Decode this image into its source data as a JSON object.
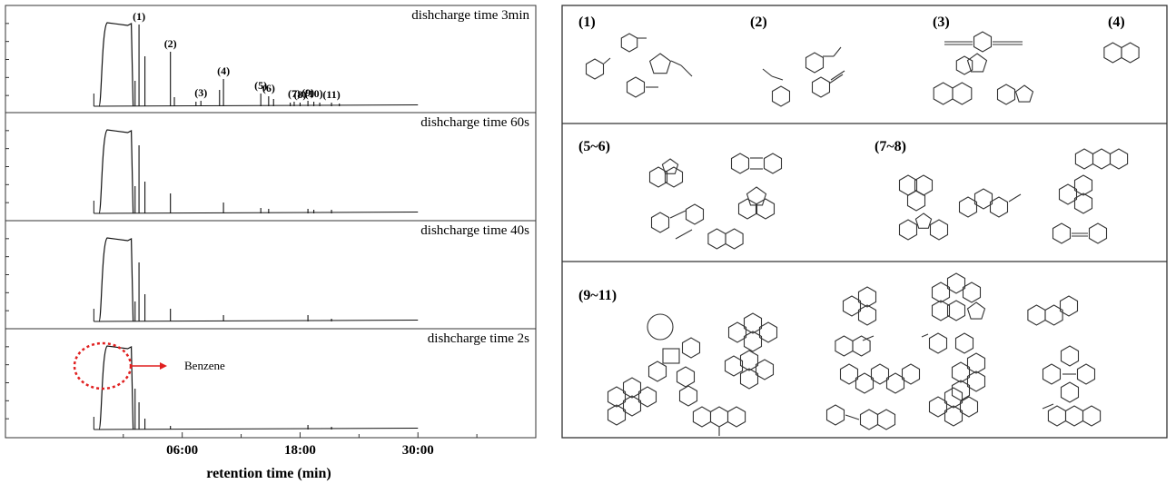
{
  "chart_data": {
    "type": "line",
    "xlabel": "retention time (min)",
    "xlim": [
      -12,
      42
    ],
    "x_ticks": [
      "06:00",
      "18:00",
      "30:00"
    ],
    "x_tick_values": [
      6,
      18,
      30
    ],
    "panels": [
      {
        "title": "dishcharge time 3min",
        "peaks": [
          {
            "x": 1.2,
            "y": 0.28
          },
          {
            "x": 1.6,
            "y": 0.9,
            "label": "(1)"
          },
          {
            "x": 2.2,
            "y": 0.55
          },
          {
            "x": 4.8,
            "y": 0.6,
            "label": "(2)"
          },
          {
            "x": 5.2,
            "y": 0.1
          },
          {
            "x": 7.4,
            "y": 0.05
          },
          {
            "x": 7.9,
            "y": 0.06,
            "label": "(3)"
          },
          {
            "x": 9.8,
            "y": 0.18
          },
          {
            "x": 10.2,
            "y": 0.3,
            "label": "(4)"
          },
          {
            "x": 14.0,
            "y": 0.14,
            "label": "(5)"
          },
          {
            "x": 14.8,
            "y": 0.11,
            "label": "(6)"
          },
          {
            "x": 15.3,
            "y": 0.08
          },
          {
            "x": 17.0,
            "y": 0.04
          },
          {
            "x": 17.4,
            "y": 0.05,
            "label": "(7)"
          },
          {
            "x": 18.0,
            "y": 0.04,
            "label": "(8)"
          },
          {
            "x": 18.8,
            "y": 0.06,
            "label": "(9)"
          },
          {
            "x": 19.4,
            "y": 0.05,
            "label": "(10)"
          },
          {
            "x": 20.0,
            "y": 0.04
          },
          {
            "x": 21.2,
            "y": 0.04,
            "label": "(11)"
          },
          {
            "x": 22.0,
            "y": 0.03
          }
        ]
      },
      {
        "title": "dishcharge time 60s",
        "peaks": [
          {
            "x": 1.2,
            "y": 0.3
          },
          {
            "x": 1.6,
            "y": 0.75
          },
          {
            "x": 2.2,
            "y": 0.35
          },
          {
            "x": 4.8,
            "y": 0.22
          },
          {
            "x": 10.2,
            "y": 0.12
          },
          {
            "x": 14.0,
            "y": 0.06
          },
          {
            "x": 14.8,
            "y": 0.05
          },
          {
            "x": 18.8,
            "y": 0.05
          },
          {
            "x": 19.4,
            "y": 0.04
          },
          {
            "x": 21.2,
            "y": 0.04
          }
        ]
      },
      {
        "title": "dishcharge time 40s",
        "peaks": [
          {
            "x": 1.2,
            "y": 0.22
          },
          {
            "x": 1.6,
            "y": 0.65
          },
          {
            "x": 2.2,
            "y": 0.3
          },
          {
            "x": 4.8,
            "y": 0.14
          },
          {
            "x": 10.2,
            "y": 0.07
          },
          {
            "x": 18.8,
            "y": 0.07
          },
          {
            "x": 21.2,
            "y": 0.03
          }
        ]
      },
      {
        "title": "dishcharge time 2s",
        "peaks": [
          {
            "x": 1.2,
            "y": 0.45
          },
          {
            "x": 1.6,
            "y": 0.3
          },
          {
            "x": 2.2,
            "y": 0.12
          },
          {
            "x": 4.8,
            "y": 0.04
          },
          {
            "x": 18.8,
            "y": 0.05
          },
          {
            "x": 21.2,
            "y": 0.03
          }
        ],
        "annotation": "Benzene"
      }
    ],
    "solvent_peak": {
      "start": -2.2,
      "end": 1.0,
      "height": 0.92
    }
  },
  "structure_groups": [
    {
      "label": "(1)"
    },
    {
      "label": "(2)"
    },
    {
      "label": "(3)"
    },
    {
      "label": "(4)"
    },
    {
      "label": "(5~6)"
    },
    {
      "label": "(7~8)"
    },
    {
      "label": "(9~11)"
    }
  ],
  "colors": {
    "line": "#111111",
    "frame": "#333333",
    "annotation": "#e02020"
  }
}
